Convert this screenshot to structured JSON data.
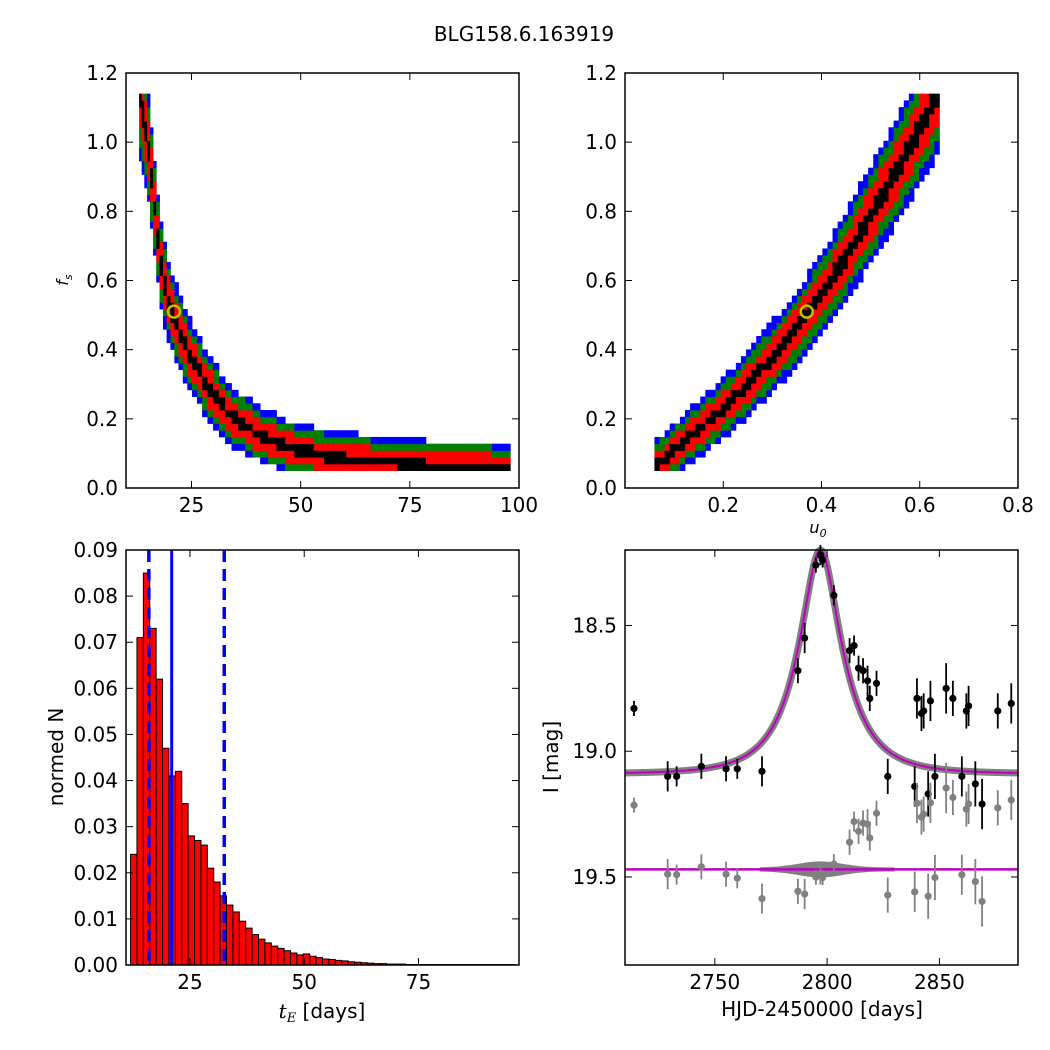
{
  "suptitle": "BLG158.6.163919",
  "colors": {
    "sigma3": "#0000ff",
    "sigma2": "#008000",
    "sigma1": "#ff0000",
    "core": "#000000",
    "best_marker": "#bfbf00",
    "hist_bar": "#ff0000",
    "hist_line": "#0000ff",
    "model_band": "#808080",
    "model_line": "#bf00bf",
    "residual_points": "#808080"
  },
  "chart_data": [
    {
      "panel": "fs_vs_tE",
      "type": "heatmap",
      "xlabel": "",
      "ylabel": "f_s",
      "xlim": [
        10,
        100
      ],
      "ylim": [
        0.0,
        1.2
      ],
      "xticks": [
        "25",
        "50",
        "75",
        "100"
      ],
      "yticks": [
        "0.0",
        "0.2",
        "0.4",
        "0.6",
        "0.8",
        "1.0",
        "1.2"
      ],
      "grid": false,
      "confidence_ridge": [
        [
          13,
          1.15
        ],
        [
          15,
          1.0
        ],
        [
          16,
          0.88
        ],
        [
          17,
          0.75
        ],
        [
          18,
          0.65
        ],
        [
          19,
          0.58
        ],
        [
          20,
          0.53
        ],
        [
          22,
          0.46
        ],
        [
          24,
          0.4
        ],
        [
          27,
          0.33
        ],
        [
          30,
          0.27
        ],
        [
          34,
          0.21
        ],
        [
          40,
          0.16
        ],
        [
          47,
          0.12
        ],
        [
          55,
          0.095
        ],
        [
          65,
          0.08
        ],
        [
          80,
          0.065
        ],
        [
          98,
          0.06
        ]
      ],
      "best_fit": {
        "tE": 21,
        "fs": 0.51
      }
    },
    {
      "panel": "fs_vs_u0",
      "type": "heatmap",
      "xlabel": "u_0",
      "ylabel": "",
      "xlim": [
        0.0,
        0.8
      ],
      "ylim": [
        0.0,
        1.2
      ],
      "xticks": [
        "0.2",
        "0.4",
        "0.6",
        "0.8"
      ],
      "yticks": [
        "0.0",
        "0.2",
        "0.4",
        "0.6",
        "0.8",
        "1.0",
        "1.2"
      ],
      "grid": false,
      "confidence_ridge": [
        [
          0.06,
          0.06
        ],
        [
          0.1,
          0.11
        ],
        [
          0.15,
          0.17
        ],
        [
          0.2,
          0.23
        ],
        [
          0.25,
          0.3
        ],
        [
          0.3,
          0.38
        ],
        [
          0.35,
          0.46
        ],
        [
          0.4,
          0.56
        ],
        [
          0.45,
          0.67
        ],
        [
          0.5,
          0.79
        ],
        [
          0.55,
          0.91
        ],
        [
          0.6,
          1.04
        ],
        [
          0.64,
          1.15
        ]
      ],
      "best_fit": {
        "u0": 0.37,
        "fs": 0.51
      }
    },
    {
      "panel": "tE_histogram",
      "type": "bar",
      "xlabel": "t_E [days]",
      "ylabel": "normed N",
      "xlim": [
        11,
        97
      ],
      "ylim": [
        0.0,
        0.09
      ],
      "xticks": [
        "25",
        "50",
        "75"
      ],
      "yticks": [
        "0.00",
        "0.01",
        "0.02",
        "0.03",
        "0.04",
        "0.05",
        "0.06",
        "0.07",
        "0.08",
        "0.09"
      ],
      "grid": false,
      "bin_start": 12,
      "bin_width": 1.4,
      "values": [
        0.024,
        0.071,
        0.085,
        0.073,
        0.062,
        0.047,
        0.041,
        0.042,
        0.035,
        0.028,
        0.027,
        0.026,
        0.021,
        0.018,
        0.015,
        0.013,
        0.0115,
        0.0095,
        0.008,
        0.0066,
        0.0056,
        0.0048,
        0.0041,
        0.0036,
        0.0031,
        0.0026,
        0.0022,
        0.0024,
        0.0019,
        0.0016,
        0.0013,
        0.0012,
        0.001,
        0.0009,
        0.0007,
        0.0006,
        0.0005,
        0.0004,
        0.0003,
        0.0003,
        0.0002,
        0.0002,
        0.0002,
        0.0001,
        0.0001,
        0.0001,
        0.0001,
        0.0001,
        0.0001,
        0.0001,
        0.0001,
        0.0001,
        0.0001,
        0.0001,
        0.0001,
        0.0001,
        0.0001,
        0.0001,
        0.0001,
        0.0001
      ],
      "median": 21,
      "interval": [
        16,
        32.5
      ]
    },
    {
      "panel": "light_curve",
      "type": "scatter",
      "xlabel": "HJD-2450000 [days]",
      "ylabel": "I [mag]",
      "xlim": [
        2710,
        2885
      ],
      "ylim": [
        19.85,
        18.2
      ],
      "y_inverted": true,
      "xticks": [
        "2750",
        "2800",
        "2850"
      ],
      "yticks": [
        "18.5",
        "19.0",
        "19.5"
      ],
      "grid": false,
      "model": {
        "baseline_mag": 19.09,
        "peak_mag": 18.2,
        "t0": 2797,
        "tE": 21,
        "u0": 0.37,
        "fs": 0.51
      },
      "residual_offset_mag": 19.47,
      "data": [
        {
          "x": 2714,
          "y": 18.83,
          "err": 0.03
        },
        {
          "x": 2729,
          "y": 19.1,
          "err": 0.06
        },
        {
          "x": 2733,
          "y": 19.1,
          "err": 0.04
        },
        {
          "x": 2744,
          "y": 19.06,
          "err": 0.05
        },
        {
          "x": 2755,
          "y": 19.07,
          "err": 0.05
        },
        {
          "x": 2760,
          "y": 19.07,
          "err": 0.04
        },
        {
          "x": 2771,
          "y": 19.08,
          "err": 0.06
        },
        {
          "x": 2787,
          "y": 18.68,
          "err": 0.05
        },
        {
          "x": 2790,
          "y": 18.55,
          "err": 0.06
        },
        {
          "x": 2795,
          "y": 18.26,
          "err": 0.03
        },
        {
          "x": 2797,
          "y": 18.22,
          "err": 0.04
        },
        {
          "x": 2798,
          "y": 18.24,
          "err": 0.03
        },
        {
          "x": 2803,
          "y": 18.38,
          "err": 0.04
        },
        {
          "x": 2810,
          "y": 18.6,
          "err": 0.05
        },
        {
          "x": 2812,
          "y": 18.58,
          "err": 0.04
        },
        {
          "x": 2814,
          "y": 18.67,
          "err": 0.05
        },
        {
          "x": 2816,
          "y": 18.68,
          "err": 0.05
        },
        {
          "x": 2818,
          "y": 18.72,
          "err": 0.06
        },
        {
          "x": 2819,
          "y": 18.79,
          "err": 0.05
        },
        {
          "x": 2822,
          "y": 18.73,
          "err": 0.05
        },
        {
          "x": 2827,
          "y": 19.1,
          "err": 0.07
        },
        {
          "x": 2839,
          "y": 19.14,
          "err": 0.08
        },
        {
          "x": 2840,
          "y": 18.79,
          "err": 0.08
        },
        {
          "x": 2842,
          "y": 18.85,
          "err": 0.07
        },
        {
          "x": 2843,
          "y": 18.84,
          "err": 0.07
        },
        {
          "x": 2845,
          "y": 19.17,
          "err": 0.09
        },
        {
          "x": 2846,
          "y": 18.8,
          "err": 0.08
        },
        {
          "x": 2848,
          "y": 19.1,
          "err": 0.09
        },
        {
          "x": 2853,
          "y": 18.75,
          "err": 0.1
        },
        {
          "x": 2856,
          "y": 18.79,
          "err": 0.07
        },
        {
          "x": 2860,
          "y": 19.1,
          "err": 0.08
        },
        {
          "x": 2862,
          "y": 18.84,
          "err": 0.07
        },
        {
          "x": 2863,
          "y": 18.82,
          "err": 0.08
        },
        {
          "x": 2866,
          "y": 19.13,
          "err": 0.09
        },
        {
          "x": 2869,
          "y": 19.21,
          "err": 0.1
        },
        {
          "x": 2876,
          "y": 18.84,
          "err": 0.07
        },
        {
          "x": 2882,
          "y": 18.81,
          "err": 0.08
        }
      ]
    }
  ]
}
